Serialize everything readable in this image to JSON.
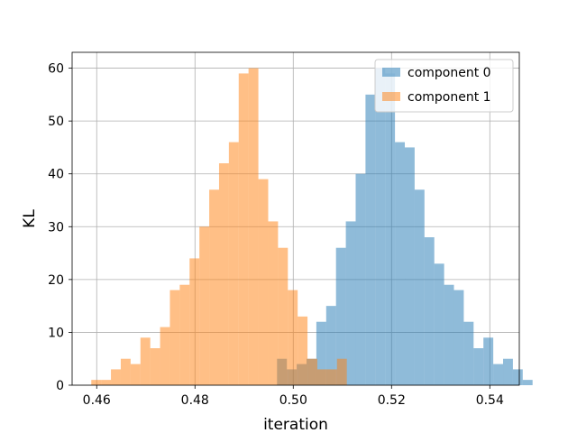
{
  "chart_data": {
    "type": "bar",
    "subtype": "overlapping-histogram",
    "title": "",
    "xlabel": "iteration",
    "ylabel": "KL",
    "xlim": [
      0.455,
      0.546
    ],
    "ylim": [
      0,
      63
    ],
    "xticks": [
      0.46,
      0.48,
      0.5,
      0.52,
      0.54
    ],
    "xtick_labels": [
      "0.46",
      "0.48",
      "0.50",
      "0.52",
      "0.54"
    ],
    "yticks": [
      0,
      10,
      20,
      30,
      40,
      50,
      60
    ],
    "ytick_labels": [
      "0",
      "10",
      "20",
      "30",
      "40",
      "50",
      "60"
    ],
    "grid": true,
    "legend_position": "top-right",
    "series": [
      {
        "name": "component 0",
        "color": "#1f77b4",
        "alpha": 0.5,
        "bin_start": 0.4967,
        "bin_width": 0.002,
        "counts": [
          5,
          3,
          4,
          5,
          12,
          15,
          26,
          31,
          40,
          55,
          60,
          59,
          46,
          45,
          37,
          28,
          23,
          19,
          18,
          12,
          7,
          9,
          4,
          5,
          3,
          1
        ]
      },
      {
        "name": "component 1",
        "color": "#ff7f0e",
        "alpha": 0.5,
        "bin_start": 0.4589,
        "bin_width": 0.002,
        "counts": [
          1,
          1,
          3,
          5,
          4,
          9,
          7,
          11,
          18,
          19,
          24,
          30,
          37,
          42,
          46,
          59,
          60,
          39,
          31,
          26,
          18,
          13,
          5,
          3,
          3,
          5
        ]
      }
    ]
  }
}
